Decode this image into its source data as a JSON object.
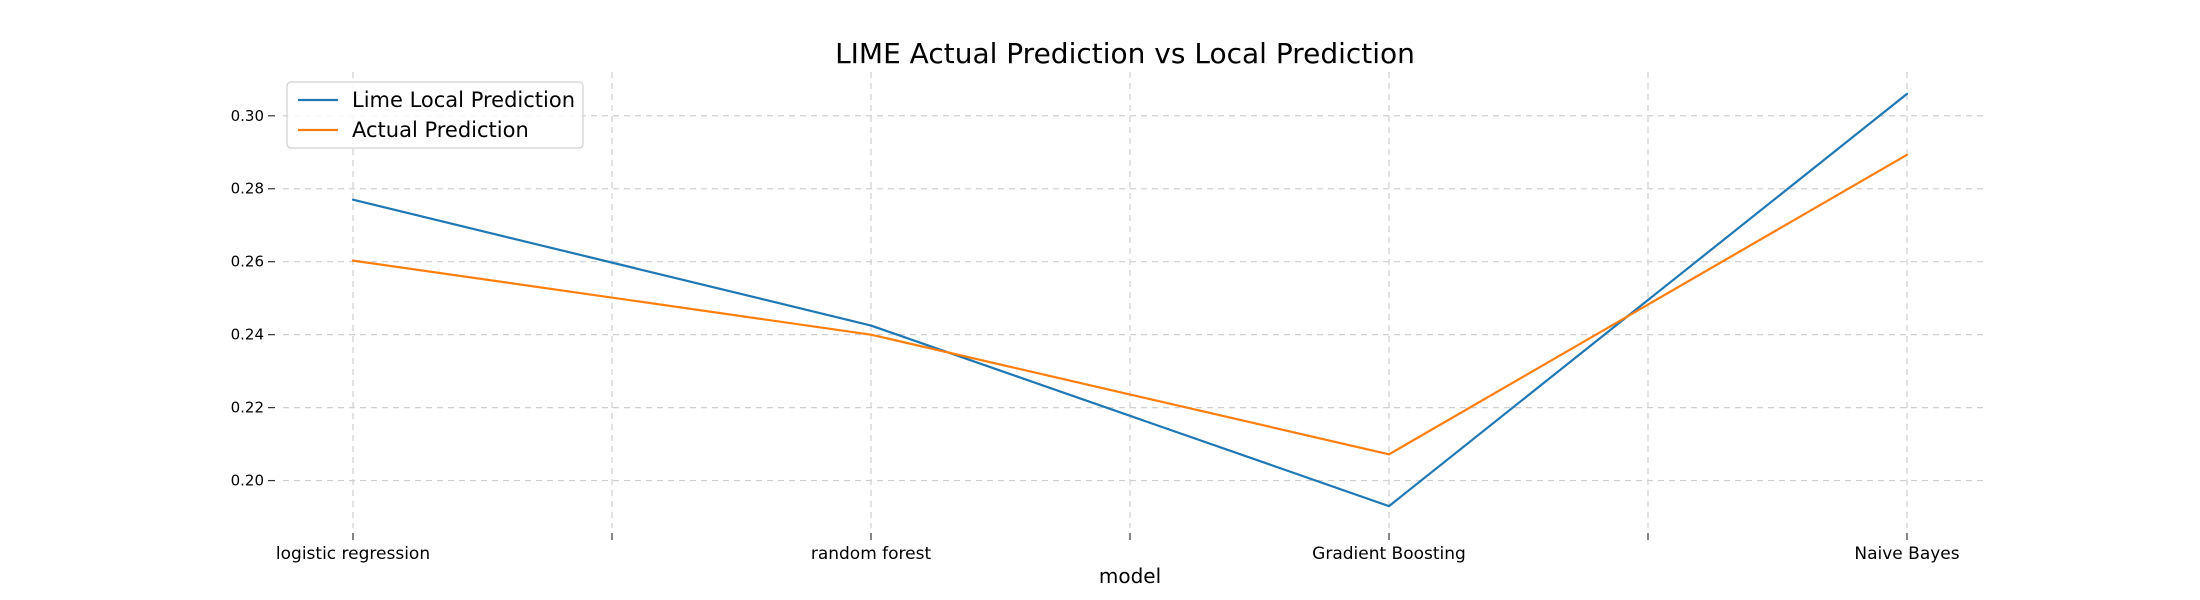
{
  "chart_data": {
    "type": "line",
    "title": "LIME Actual Prediction vs Local Prediction",
    "xlabel": "model",
    "ylabel": "",
    "categories": [
      "logistic regression",
      "random forest",
      "Gradient Boosting",
      "Naive Bayes"
    ],
    "series": [
      {
        "name": "Lime Local Prediction",
        "color": "#1f77b4",
        "values": [
          0.277,
          0.2425,
          0.193,
          0.306
        ]
      },
      {
        "name": "Actual Prediction",
        "color": "#ff7f0e",
        "values": [
          0.2603,
          0.24,
          0.2072,
          0.2893
        ]
      }
    ],
    "ylim": [
      0.187,
      0.312
    ],
    "yticks": [
      "0.20",
      "0.22",
      "0.24",
      "0.26",
      "0.28",
      "0.30"
    ],
    "grid": true,
    "legend_position": "top-left"
  }
}
